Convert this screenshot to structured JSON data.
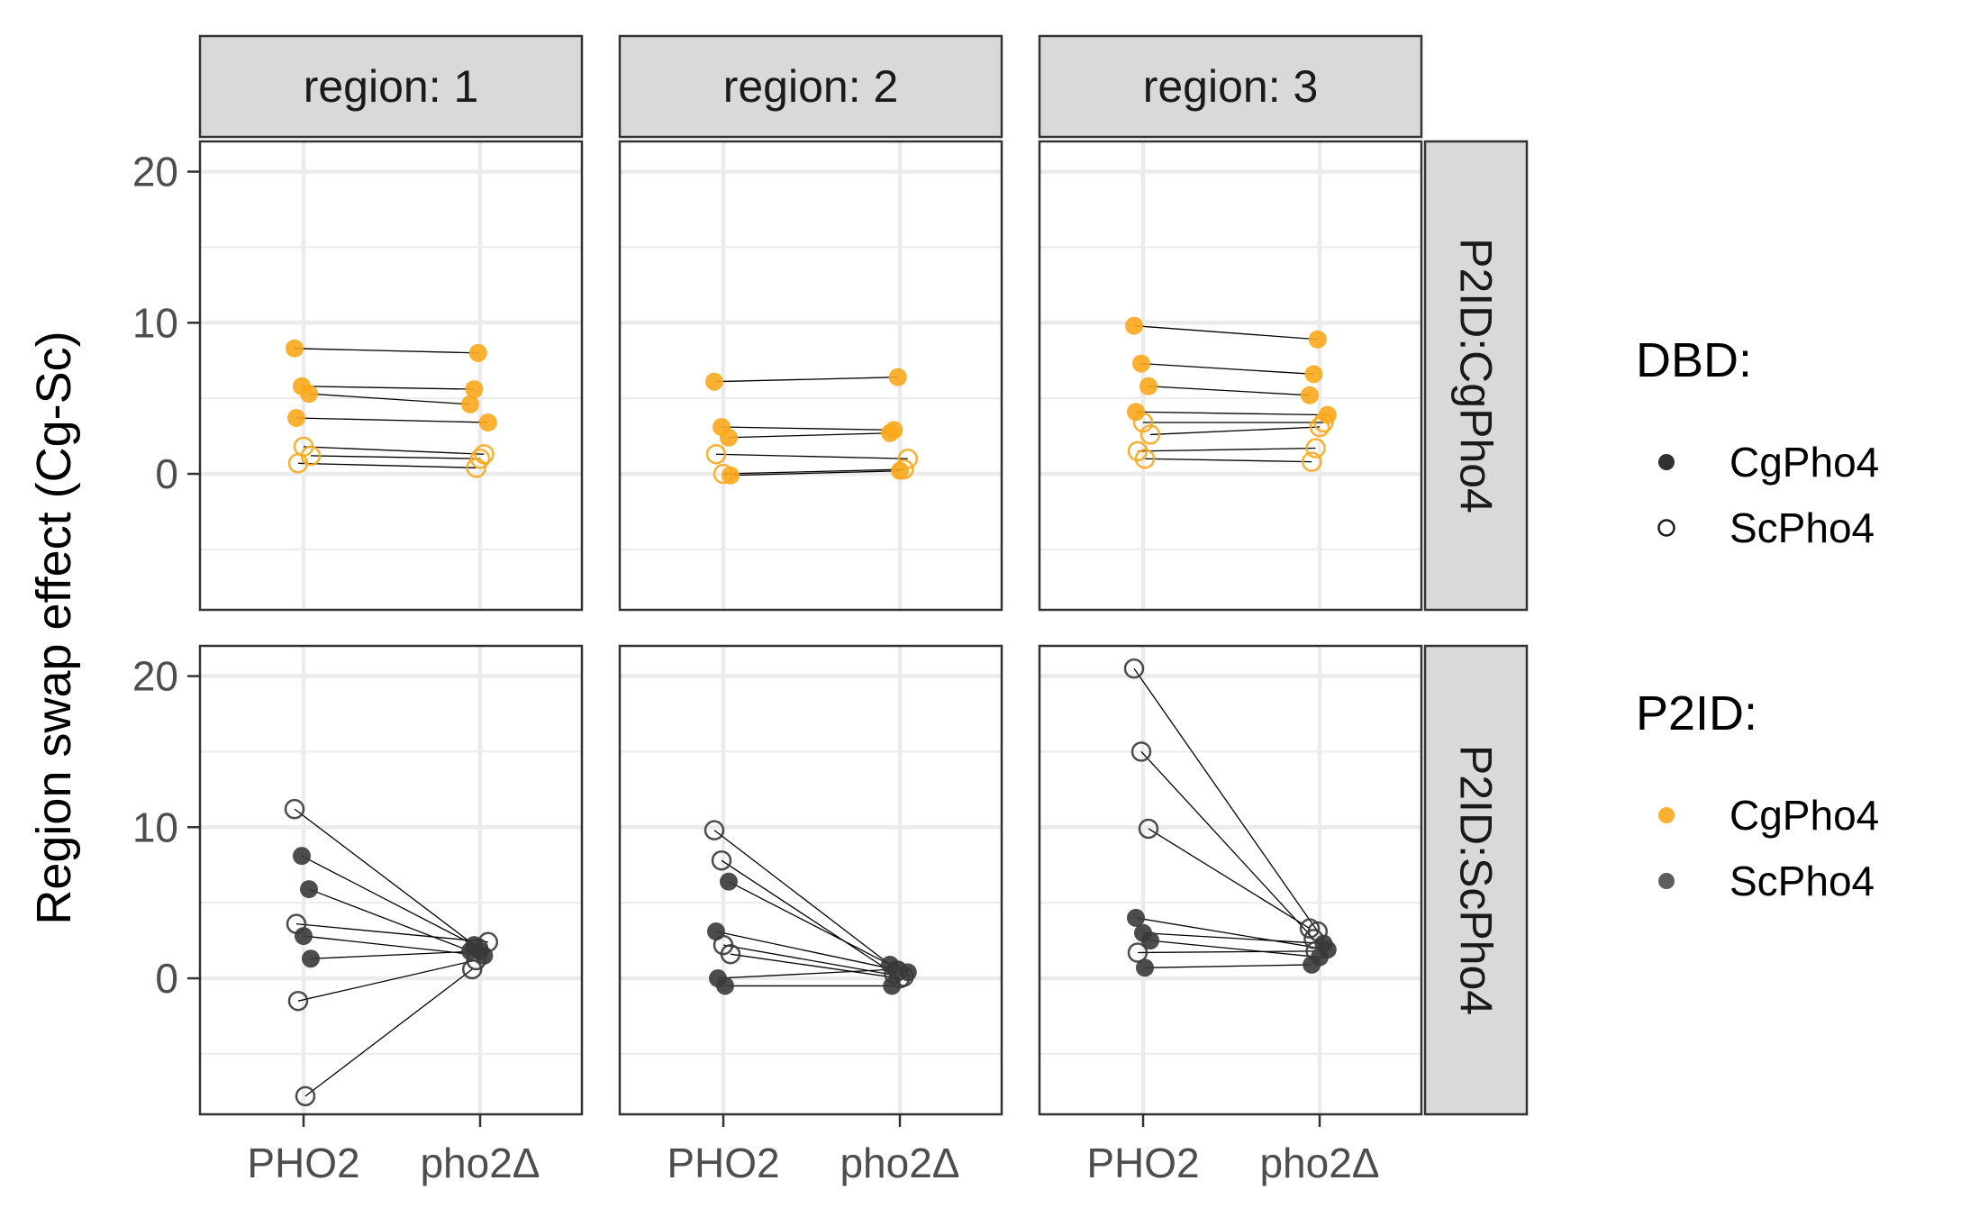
{
  "chart_data": {
    "type": "scatter",
    "ylabel": "Region swap effect (Cg-Sc)",
    "xlabel": "",
    "x_categories": [
      "PHO2",
      "pho2Δ"
    ],
    "ylim": [
      -9,
      22
    ],
    "y_ticks": [
      0,
      10,
      20
    ],
    "grid": true,
    "legend_position": "right",
    "columns": [
      {
        "strip": "region: 1",
        "value": 1
      },
      {
        "strip": "region: 2",
        "value": 2
      },
      {
        "strip": "region: 3",
        "value": 3
      }
    ],
    "rows": [
      {
        "strip": "P2ID:CgPho4",
        "value": "CgPho4"
      },
      {
        "strip": "P2ID:ScPho4",
        "value": "ScPho4"
      }
    ],
    "legends": [
      {
        "title": "DBD:",
        "items": [
          {
            "label": "CgPho4",
            "style": "filled",
            "color": "#1a1a1a"
          },
          {
            "label": "ScPho4",
            "style": "open",
            "color": "#1a1a1a"
          }
        ]
      },
      {
        "title": "P2ID:",
        "items": [
          {
            "label": "CgPho4",
            "style": "filled",
            "color": "#F9A81B"
          },
          {
            "label": "ScPho4",
            "style": "filled",
            "color": "#4d4d4d"
          }
        ]
      }
    ],
    "colors": {
      "CgPho4": "#F9A81B",
      "ScPho4": "#3a3a3a"
    },
    "panels": [
      {
        "region": 1,
        "p2id": "CgPho4",
        "pairs": [
          {
            "dbd": "CgPho4",
            "PHO2": 8.3,
            "pho2": 8.0
          },
          {
            "dbd": "CgPho4",
            "PHO2": 5.8,
            "pho2": 5.6
          },
          {
            "dbd": "CgPho4",
            "PHO2": 5.3,
            "pho2": 4.6
          },
          {
            "dbd": "CgPho4",
            "PHO2": 3.7,
            "pho2": 3.4
          },
          {
            "dbd": "ScPho4",
            "PHO2": 1.8,
            "pho2": 1.3
          },
          {
            "dbd": "ScPho4",
            "PHO2": 1.2,
            "pho2": 1.0
          },
          {
            "dbd": "ScPho4",
            "PHO2": 0.7,
            "pho2": 0.4
          }
        ]
      },
      {
        "region": 2,
        "p2id": "CgPho4",
        "pairs": [
          {
            "dbd": "CgPho4",
            "PHO2": 6.1,
            "pho2": 6.4
          },
          {
            "dbd": "CgPho4",
            "PHO2": 3.1,
            "pho2": 2.9
          },
          {
            "dbd": "CgPho4",
            "PHO2": 2.4,
            "pho2": 2.7
          },
          {
            "dbd": "ScPho4",
            "PHO2": 1.3,
            "pho2": 1.0
          },
          {
            "dbd": "ScPho4",
            "PHO2": 0.0,
            "pho2": 0.3
          },
          {
            "dbd": "CgPho4",
            "PHO2": -0.1,
            "pho2": 0.2
          }
        ]
      },
      {
        "region": 3,
        "p2id": "CgPho4",
        "pairs": [
          {
            "dbd": "CgPho4",
            "PHO2": 9.8,
            "pho2": 8.9
          },
          {
            "dbd": "CgPho4",
            "PHO2": 7.3,
            "pho2": 6.6
          },
          {
            "dbd": "CgPho4",
            "PHO2": 5.8,
            "pho2": 5.2
          },
          {
            "dbd": "CgPho4",
            "PHO2": 4.1,
            "pho2": 3.9
          },
          {
            "dbd": "ScPho4",
            "PHO2": 3.4,
            "pho2": 3.4
          },
          {
            "dbd": "ScPho4",
            "PHO2": 2.6,
            "pho2": 3.1
          },
          {
            "dbd": "ScPho4",
            "PHO2": 1.5,
            "pho2": 1.7
          },
          {
            "dbd": "ScPho4",
            "PHO2": 1.0,
            "pho2": 0.8
          }
        ]
      },
      {
        "region": 1,
        "p2id": "ScPho4",
        "pairs": [
          {
            "dbd": "ScPho4",
            "PHO2": 11.2,
            "pho2": 2.0
          },
          {
            "dbd": "CgPho4",
            "PHO2": 8.1,
            "pho2": 2.2
          },
          {
            "dbd": "CgPho4",
            "PHO2": 5.9,
            "pho2": 1.8
          },
          {
            "dbd": "ScPho4",
            "PHO2": 3.6,
            "pho2": 2.4
          },
          {
            "dbd": "CgPho4",
            "PHO2": 2.8,
            "pho2": 1.5
          },
          {
            "dbd": "CgPho4",
            "PHO2": 1.3,
            "pho2": 1.8
          },
          {
            "dbd": "ScPho4",
            "PHO2": -1.5,
            "pho2": 1.2
          },
          {
            "dbd": "ScPho4",
            "PHO2": -7.8,
            "pho2": 0.6
          }
        ]
      },
      {
        "region": 2,
        "p2id": "ScPho4",
        "pairs": [
          {
            "dbd": "ScPho4",
            "PHO2": 9.8,
            "pho2": 0.5
          },
          {
            "dbd": "ScPho4",
            "PHO2": 7.8,
            "pho2": 0.3
          },
          {
            "dbd": "CgPho4",
            "PHO2": 6.4,
            "pho2": 0.9
          },
          {
            "dbd": "CgPho4",
            "PHO2": 3.1,
            "pho2": 0.4
          },
          {
            "dbd": "ScPho4",
            "PHO2": 2.2,
            "pho2": 0.1
          },
          {
            "dbd": "ScPho4",
            "PHO2": 1.6,
            "pho2": 0.0
          },
          {
            "dbd": "CgPho4",
            "PHO2": 0.0,
            "pho2": 0.6
          },
          {
            "dbd": "CgPho4",
            "PHO2": -0.5,
            "pho2": -0.5
          }
        ]
      },
      {
        "region": 3,
        "p2id": "ScPho4",
        "pairs": [
          {
            "dbd": "ScPho4",
            "PHO2": 20.5,
            "pho2": 3.1
          },
          {
            "dbd": "ScPho4",
            "PHO2": 15.0,
            "pho2": 2.6
          },
          {
            "dbd": "ScPho4",
            "PHO2": 9.9,
            "pho2": 3.3
          },
          {
            "dbd": "CgPho4",
            "PHO2": 4.0,
            "pho2": 1.9
          },
          {
            "dbd": "CgPho4",
            "PHO2": 3.0,
            "pho2": 2.3
          },
          {
            "dbd": "CgPho4",
            "PHO2": 2.5,
            "pho2": 1.4
          },
          {
            "dbd": "ScPho4",
            "PHO2": 1.7,
            "pho2": 1.8
          },
          {
            "dbd": "CgPho4",
            "PHO2": 0.7,
            "pho2": 0.9
          }
        ]
      }
    ]
  }
}
